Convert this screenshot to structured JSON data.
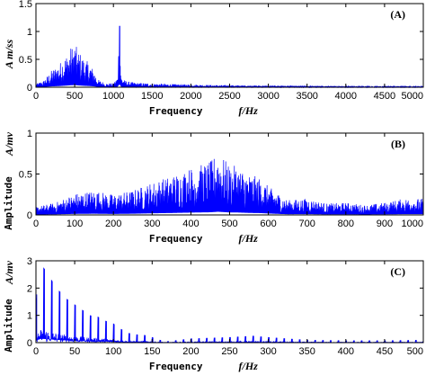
{
  "chart_data": [
    {
      "type": "line",
      "panel_tag": "(A)",
      "xlabel": "Frequency",
      "xunit": "f/Hz",
      "ylabel": "",
      "yunit": "A   m/ss",
      "xlim": [
        0,
        5000
      ],
      "ylim": [
        0,
        1.5
      ],
      "xticks": [
        "0",
        "500",
        "1000",
        "1500",
        "2000",
        "2500",
        "3000",
        "3500",
        "4000",
        "4500",
        "5000"
      ],
      "yticks": [
        "0",
        "0.5",
        "1",
        "1.5"
      ],
      "color": "#0000ff",
      "series": [
        {
          "x": [
            0,
            100,
            200,
            300,
            350,
            400,
            450,
            500,
            550,
            600,
            650,
            700,
            750,
            800,
            900,
            1000,
            1050,
            1080,
            1100,
            1150,
            1200,
            1300,
            1500,
            1700,
            2000,
            2300,
            2600,
            3000,
            3500,
            4000,
            4500,
            5000
          ],
          "y": [
            0.06,
            0.12,
            0.3,
            0.42,
            0.52,
            0.6,
            0.72,
            0.78,
            0.66,
            0.55,
            0.48,
            0.42,
            0.3,
            0.14,
            0.07,
            0.07,
            0.18,
            1.1,
            0.2,
            0.12,
            0.1,
            0.08,
            0.07,
            0.06,
            0.05,
            0.04,
            0.035,
            0.03,
            0.025,
            0.02,
            0.02,
            0.02
          ]
        }
      ]
    },
    {
      "type": "line",
      "panel_tag": "(B)",
      "xlabel": "Frequency",
      "xunit": "f/Hz",
      "ylabel": "Amplitude",
      "yunit": "A/mv",
      "xlim": [
        0,
        1000
      ],
      "ylim": [
        0,
        1
      ],
      "xticks": [
        "0",
        "100",
        "200",
        "300",
        "400",
        "500",
        "600",
        "700",
        "800",
        "900",
        "1000"
      ],
      "yticks": [
        "0",
        "0.5",
        "1"
      ],
      "color": "#0000ff",
      "series": [
        {
          "x": [
            0,
            50,
            100,
            150,
            200,
            250,
            300,
            350,
            400,
            450,
            470,
            480,
            500,
            520,
            550,
            580,
            600,
            650,
            700,
            750,
            800,
            850,
            900,
            950,
            1000
          ],
          "y": [
            0.1,
            0.15,
            0.26,
            0.3,
            0.25,
            0.3,
            0.4,
            0.48,
            0.58,
            0.65,
            0.78,
            0.72,
            0.6,
            0.6,
            0.5,
            0.45,
            0.35,
            0.18,
            0.2,
            0.14,
            0.15,
            0.12,
            0.15,
            0.2,
            0.2
          ]
        }
      ]
    },
    {
      "type": "line",
      "panel_tag": "(C)",
      "xlabel": "Frequency",
      "xunit": "f/Hz",
      "ylabel": "Amplitude",
      "yunit": "A/mv",
      "xlim": [
        0,
        500
      ],
      "ylim": [
        0,
        3
      ],
      "xticks": [
        "0",
        "50",
        "100",
        "150",
        "200",
        "250",
        "300",
        "350",
        "400",
        "450",
        "500"
      ],
      "yticks": [
        "0",
        "1",
        "2",
        "3"
      ],
      "color": "#0000ff",
      "series": [
        {
          "x": [
            0,
            5,
            10,
            20,
            30,
            40,
            50,
            60,
            70,
            80,
            90,
            100,
            110,
            120,
            130,
            140,
            150,
            160,
            170,
            200,
            250,
            280,
            300,
            350,
            400,
            450,
            500
          ],
          "y": [
            1.5,
            2.7,
            2.75,
            2.3,
            1.9,
            1.6,
            1.4,
            1.2,
            1.0,
            0.95,
            0.8,
            0.7,
            0.5,
            0.35,
            0.3,
            0.28,
            0.2,
            0.1,
            0.05,
            0.15,
            0.2,
            0.25,
            0.2,
            0.1,
            0.08,
            0.08,
            0.1
          ]
        }
      ]
    }
  ]
}
